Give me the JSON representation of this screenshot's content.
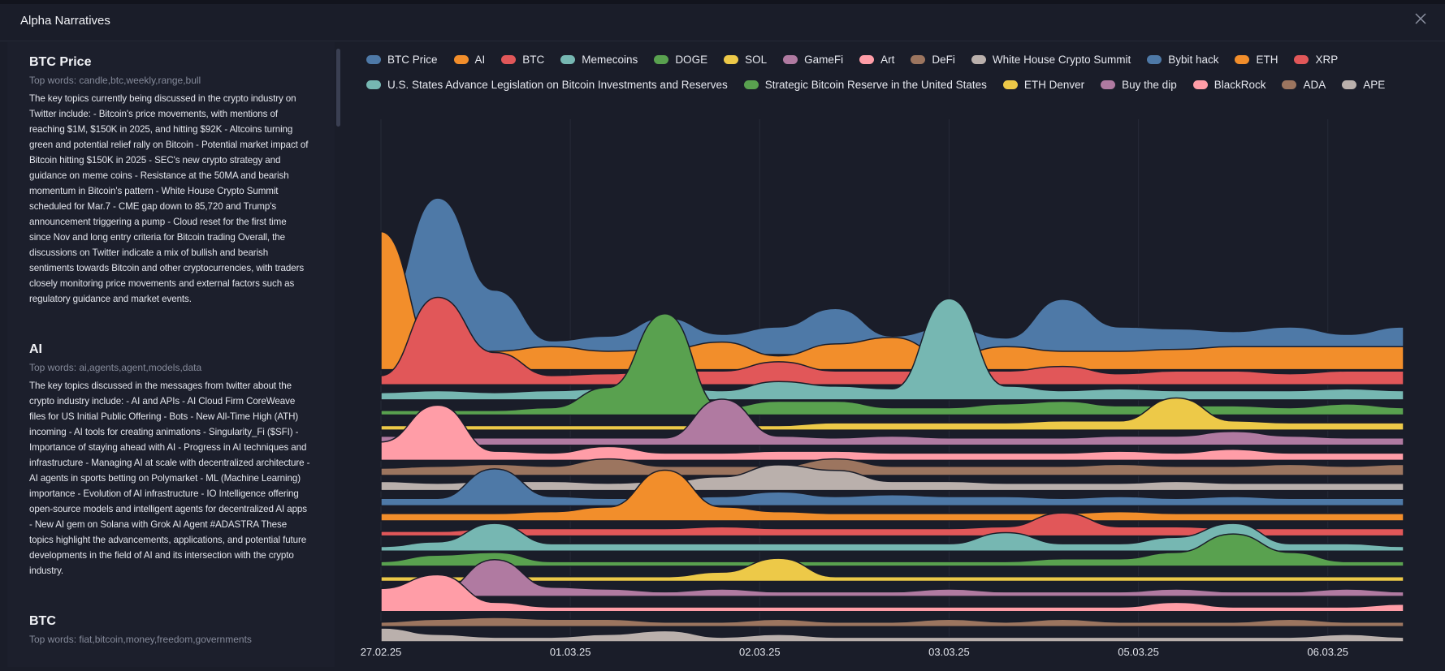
{
  "header": {
    "title": "Alpha Narratives"
  },
  "panel": {
    "items": [
      {
        "title": "BTC Price",
        "top_words": "Top words: candle,btc,weekly,range,bull",
        "text": "The key topics currently being discussed in the crypto industry on Twitter include: - Bitcoin's price movements, with mentions of reaching $1M, $150K in 2025, and hitting $92K - Altcoins turning green and potential relief rally on Bitcoin - Potential market impact of Bitcoin hitting $150K in 2025 - SEC's new crypto strategy and guidance on meme coins - Resistance at the 50MA and bearish momentum in Bitcoin's pattern - White House Crypto Summit scheduled for Mar.7 - CME gap down to 85,720 and Trump's announcement triggering a pump - Cloud reset for the first time since Nov and long entry criteria for Bitcoin trading Overall, the discussions on Twitter indicate a mix of bullish and bearish sentiments towards Bitcoin and other cryptocurrencies, with traders closely monitoring price movements and external factors such as regulatory guidance and market events."
      },
      {
        "title": "AI",
        "top_words": "Top words: ai,agents,agent,models,data",
        "text": "The key topics discussed in the messages from twitter about the crypto industry include: - AI and APIs - AI Cloud Firm CoreWeave files for US Initial Public Offering - Bots - New All-Time High (ATH) incoming - AI tools for creating animations - Singularity_Fi ($SFI) - Importance of staying ahead with AI - Progress in AI techniques and infrastructure - Managing AI at scale with decentralized architecture - AI agents in sports betting on Polymarket - ML (Machine Learning) importance - Evolution of AI infrastructure - IO Intelligence offering open-source models and intelligent agents for decentralized AI apps - New AI gem on Solana with Grok AI Agent #ADASTRA These topics highlight the advancements, applications, and potential future developments in the field of AI and its intersection with the crypto industry."
      },
      {
        "title": "BTC",
        "top_words": "Top words: fiat,bitcoin,money,freedom,governments"
      }
    ]
  },
  "chart_data": {
    "type": "ridgeline",
    "grid": true,
    "x": [
      0,
      0.3,
      0.6,
      0.9,
      1.2,
      1.5,
      1.8,
      2.1,
      2.4,
      2.7,
      3.0,
      3.3,
      3.6,
      3.9,
      4.2,
      4.5,
      4.8,
      5.1,
      5.4
    ],
    "xlim": [
      0,
      5.4
    ],
    "xticks": [
      {
        "value": 0,
        "label": "27.02.25"
      },
      {
        "value": 1,
        "label": "01.03.25"
      },
      {
        "value": 2,
        "label": "02.03.25"
      },
      {
        "value": 3,
        "label": "03.03.25"
      },
      {
        "value": 4,
        "label": "05.03.25"
      },
      {
        "value": 5,
        "label": "06.03.25"
      }
    ],
    "series": [
      {
        "name": "BTC Price",
        "color": "#4e79a7",
        "values": [
          45,
          170,
          70,
          15,
          20,
          40,
          22,
          30,
          50,
          20,
          30,
          18,
          60,
          30,
          28,
          25,
          30,
          22,
          30
        ]
      },
      {
        "name": "AI",
        "color": "#f28e2b",
        "values": [
          150,
          15,
          20,
          25,
          20,
          22,
          30,
          15,
          28,
          35,
          15,
          25,
          20,
          20,
          22,
          25,
          25,
          25,
          25
        ]
      },
      {
        "name": "BTC",
        "color": "#e15759",
        "values": [
          10,
          95,
          35,
          10,
          12,
          15,
          15,
          25,
          15,
          15,
          15,
          15,
          20,
          12,
          15,
          15,
          12,
          15,
          15
        ]
      },
      {
        "name": "Memecoins",
        "color": "#76b7b2",
        "values": [
          8,
          10,
          8,
          10,
          12,
          15,
          10,
          20,
          15,
          12,
          110,
          15,
          10,
          12,
          10,
          10,
          10,
          12,
          10
        ]
      },
      {
        "name": "DOGE",
        "color": "#59a14f",
        "values": [
          5,
          5,
          5,
          8,
          30,
          110,
          8,
          15,
          15,
          8,
          8,
          12,
          15,
          10,
          10,
          10,
          8,
          12,
          8
        ]
      },
      {
        "name": "SOL",
        "color": "#edc948",
        "values": [
          5,
          5,
          5,
          5,
          5,
          5,
          5,
          5,
          8,
          8,
          8,
          8,
          10,
          10,
          35,
          10,
          8,
          8,
          8
        ]
      },
      {
        "name": "GameFi",
        "color": "#b07aa1",
        "values": [
          10,
          8,
          8,
          8,
          8,
          8,
          50,
          10,
          8,
          10,
          8,
          8,
          8,
          10,
          10,
          15,
          10,
          8,
          8
        ]
      },
      {
        "name": "Art",
        "color": "#ff9da7",
        "values": [
          20,
          60,
          10,
          8,
          15,
          8,
          8,
          10,
          10,
          8,
          8,
          8,
          8,
          10,
          8,
          12,
          8,
          8,
          8
        ]
      },
      {
        "name": "DeFi",
        "color": "#9c755f",
        "values": [
          8,
          10,
          12,
          10,
          18,
          10,
          10,
          10,
          18,
          10,
          10,
          10,
          10,
          12,
          10,
          10,
          12,
          10,
          12
        ]
      },
      {
        "name": "White House Crypto Summit",
        "color": "#bab0ac",
        "values": [
          10,
          8,
          10,
          10,
          8,
          10,
          15,
          28,
          22,
          10,
          10,
          8,
          8,
          8,
          10,
          8,
          8,
          8,
          8
        ]
      },
      {
        "name": "Bybit hack",
        "color": "#4e79a7",
        "values": [
          8,
          8,
          40,
          10,
          8,
          8,
          10,
          15,
          10,
          12,
          10,
          10,
          8,
          10,
          8,
          10,
          8,
          8,
          8
        ]
      },
      {
        "name": "ETH",
        "color": "#f28e2b",
        "values": [
          8,
          8,
          8,
          10,
          15,
          55,
          15,
          10,
          8,
          8,
          8,
          8,
          8,
          10,
          8,
          8,
          8,
          8,
          8
        ]
      },
      {
        "name": "XRP",
        "color": "#e15759",
        "values": [
          5,
          5,
          8,
          8,
          8,
          8,
          10,
          8,
          8,
          8,
          8,
          10,
          25,
          10,
          10,
          8,
          8,
          8,
          8
        ]
      },
      {
        "name": "U.S. States Advance Legislation on Bitcoin Investments and Reserves",
        "color": "#76b7b2",
        "values": [
          5,
          10,
          30,
          8,
          8,
          8,
          8,
          8,
          8,
          8,
          8,
          20,
          8,
          8,
          15,
          30,
          8,
          8,
          5
        ]
      },
      {
        "name": "Strategic Bitcoin Reserve in the United States",
        "color": "#59a14f",
        "values": [
          5,
          12,
          15,
          5,
          5,
          5,
          5,
          5,
          5,
          5,
          5,
          5,
          8,
          8,
          15,
          35,
          15,
          5,
          5
        ]
      },
      {
        "name": "ETH Denver",
        "color": "#edc948",
        "values": [
          5,
          5,
          5,
          5,
          5,
          5,
          10,
          25,
          5,
          5,
          5,
          5,
          5,
          5,
          5,
          5,
          5,
          5,
          5
        ]
      },
      {
        "name": "Buy the dip",
        "color": "#b07aa1",
        "values": [
          5,
          5,
          40,
          10,
          8,
          5,
          8,
          5,
          5,
          5,
          8,
          5,
          5,
          5,
          8,
          5,
          5,
          8,
          5
        ]
      },
      {
        "name": "BlackRock",
        "color": "#ff9da7",
        "values": [
          25,
          40,
          10,
          5,
          5,
          5,
          5,
          5,
          5,
          5,
          5,
          5,
          5,
          5,
          10,
          5,
          5,
          5,
          8
        ]
      },
      {
        "name": "ADA",
        "color": "#9c755f",
        "values": [
          5,
          8,
          10,
          8,
          8,
          5,
          5,
          8,
          5,
          5,
          8,
          5,
          8,
          5,
          5,
          5,
          8,
          5,
          5
        ]
      },
      {
        "name": "APE",
        "color": "#bab0ac",
        "values": [
          15,
          8,
          5,
          5,
          8,
          12,
          5,
          8,
          5,
          5,
          5,
          5,
          5,
          5,
          5,
          5,
          5,
          8,
          5
        ]
      }
    ]
  }
}
